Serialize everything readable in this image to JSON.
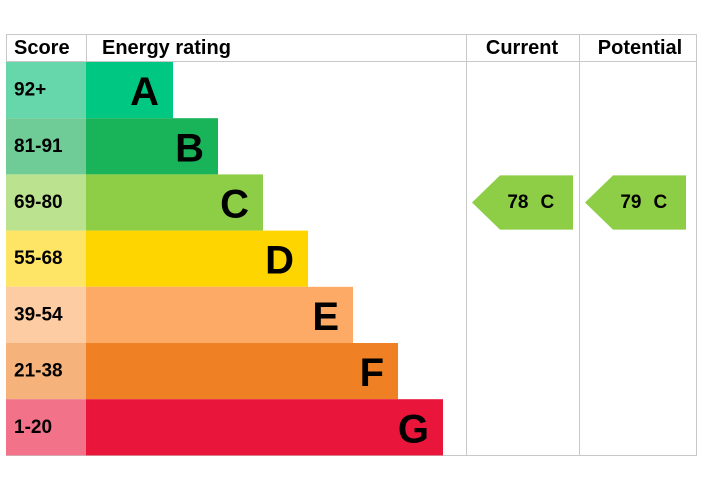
{
  "header": {
    "score": "Score",
    "rating": "Energy rating",
    "current": "Current",
    "potential": "Potential"
  },
  "bands": [
    {
      "score": "92+",
      "letter": "A",
      "color": "#00c781",
      "light": "#66d7ab"
    },
    {
      "score": "81-91",
      "letter": "B",
      "color": "#19b459",
      "light": "#6fcc96"
    },
    {
      "score": "69-80",
      "letter": "C",
      "color": "#8dce46",
      "light": "#bbe28f"
    },
    {
      "score": "55-68",
      "letter": "D",
      "color": "#ffd500",
      "light": "#ffe566"
    },
    {
      "score": "39-54",
      "letter": "E",
      "color": "#fcaa65",
      "light": "#fdcca3"
    },
    {
      "score": "21-38",
      "letter": "F",
      "color": "#ef8023",
      "light": "#f5b37b"
    },
    {
      "score": "1-20",
      "letter": "G",
      "color": "#e9153b",
      "light": "#f27389"
    }
  ],
  "current": {
    "value": 78,
    "band": "C"
  },
  "potential": {
    "value": 79,
    "band": "C"
  }
}
